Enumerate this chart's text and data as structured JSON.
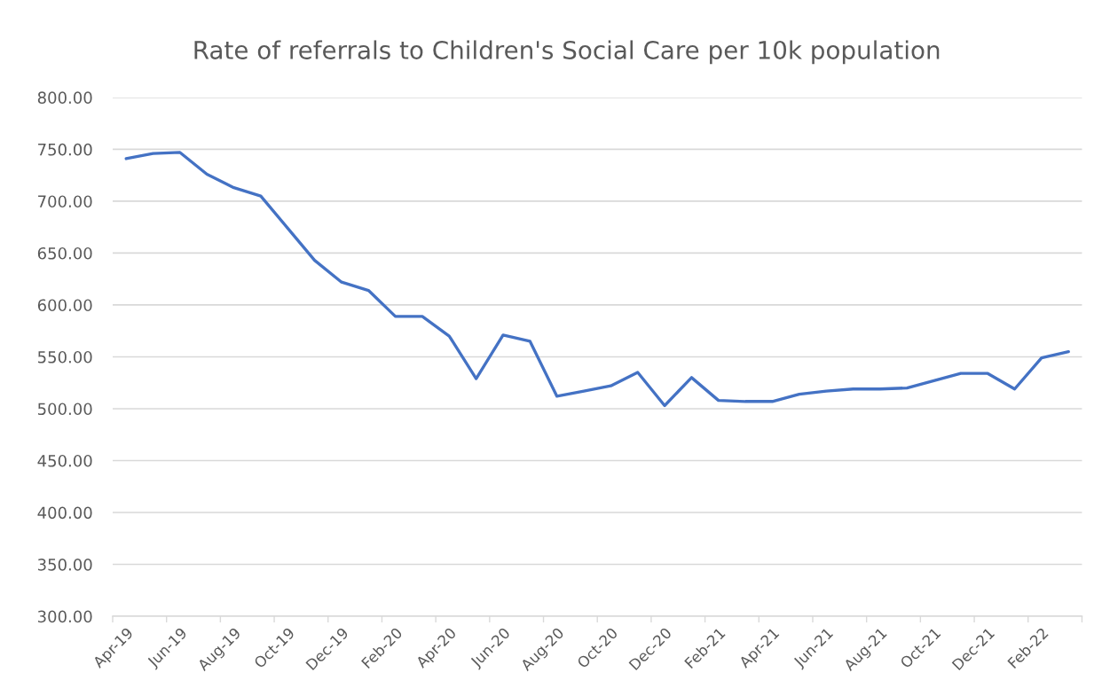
{
  "chart_data": {
    "type": "line",
    "title": "Rate of referrals to Children's Social Care per 10k population",
    "categories": [
      "Apr-19",
      null,
      "Jun-19",
      null,
      "Aug-19",
      null,
      "Oct-19",
      null,
      "Dec-19",
      null,
      "Feb-20",
      null,
      "Apr-20",
      null,
      "Jun-20",
      null,
      "Aug-20",
      null,
      "Oct-20",
      null,
      "Dec-20",
      null,
      "Feb-21",
      null,
      "Apr-21",
      null,
      "Jun-21",
      null,
      "Aug-21",
      null,
      "Oct-21",
      null,
      "Dec-21",
      null,
      "Feb-22",
      null
    ],
    "values": [
      741,
      746,
      747,
      726,
      713,
      705,
      674,
      643,
      622,
      614,
      589,
      589,
      570,
      529,
      571,
      565,
      512,
      517,
      522,
      535,
      503,
      530,
      508,
      507,
      507,
      514,
      517,
      519,
      519,
      520,
      527,
      534,
      534,
      519,
      549,
      555
    ],
    "color": "#4472c4",
    "line_style": "solid",
    "ylim": [
      300,
      800
    ],
    "yticks": [
      {
        "value": 300,
        "label": "300.00"
      },
      {
        "value": 350,
        "label": "350.00"
      },
      {
        "value": 400,
        "label": "400.00"
      },
      {
        "value": 450,
        "label": "450.00"
      },
      {
        "value": 500,
        "label": "500.00"
      },
      {
        "value": 550,
        "label": "550.00"
      },
      {
        "value": 600,
        "label": "600.00"
      },
      {
        "value": 650,
        "label": "650.00"
      },
      {
        "value": 700,
        "label": "700.00"
      },
      {
        "value": 750,
        "label": "750.00"
      },
      {
        "value": 800,
        "label": "800.00"
      }
    ],
    "grid": "y"
  }
}
